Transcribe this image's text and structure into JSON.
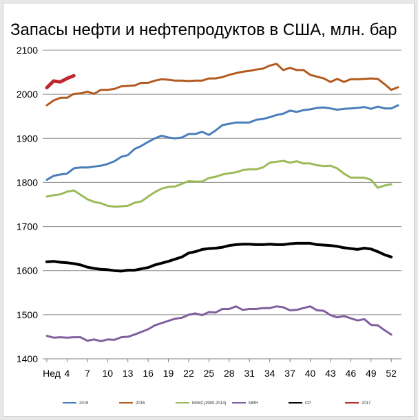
{
  "chart_data": {
    "type": "line",
    "title": "Запасы нефти и нефтепродуктов в США, млн. бар",
    "xlabel": "",
    "ylabel": "",
    "ylim": [
      1400,
      2100
    ],
    "yticks": [
      1400,
      1500,
      1600,
      1700,
      1800,
      1900,
      2000,
      2100
    ],
    "xlim": [
      1,
      53
    ],
    "xticks": [
      1,
      4,
      7,
      10,
      13,
      16,
      19,
      22,
      25,
      28,
      31,
      34,
      37,
      40,
      43,
      46,
      49,
      52
    ],
    "xtick_labels": [
      "Нед",
      "4",
      "7",
      "10",
      "13",
      "16",
      "19",
      "22",
      "25",
      "28",
      "31",
      "34",
      "37",
      "40",
      "43",
      "46",
      "49",
      "52"
    ],
    "grid": "horizontal",
    "legend_position": "bottom",
    "series": [
      {
        "name": "2015",
        "color": "#4a7ebb",
        "width": 3,
        "x": [
          1,
          2,
          3,
          4,
          5,
          6,
          7,
          8,
          9,
          10,
          11,
          12,
          13,
          14,
          15,
          16,
          17,
          18,
          19,
          20,
          21,
          22,
          23,
          24,
          25,
          26,
          27,
          28,
          29,
          30,
          31,
          32,
          33,
          34,
          35,
          36,
          37,
          38,
          39,
          40,
          41,
          42,
          43,
          44,
          45,
          46,
          47,
          48,
          49,
          50,
          51,
          52,
          53
        ],
        "values": [
          1806,
          1815,
          1818,
          1820,
          1832,
          1834,
          1834,
          1836,
          1838,
          1842,
          1848,
          1858,
          1862,
          1876,
          1883,
          1892,
          1900,
          1906,
          1902,
          1900,
          1902,
          1910,
          1910,
          1915,
          1908,
          1918,
          1930,
          1933,
          1936,
          1936,
          1936,
          1942,
          1944,
          1948,
          1953,
          1956,
          1963,
          1960,
          1964,
          1966,
          1969,
          1970,
          1968,
          1965,
          1967,
          1968,
          1969,
          1971,
          1967,
          1972,
          1968,
          1968,
          1975
        ]
      },
      {
        "name": "2016",
        "color": "#b35a1f",
        "width": 3,
        "x": [
          1,
          2,
          3,
          4,
          5,
          6,
          7,
          8,
          9,
          10,
          11,
          12,
          13,
          14,
          15,
          16,
          17,
          18,
          19,
          20,
          21,
          22,
          23,
          24,
          25,
          26,
          27,
          28,
          29,
          30,
          31,
          32,
          33,
          34,
          35,
          36,
          37,
          38,
          39,
          40,
          41,
          42,
          43,
          44,
          45,
          46,
          47,
          48,
          49,
          50,
          51,
          52,
          53
        ],
        "values": [
          1975,
          1986,
          1992,
          1992,
          2001,
          2002,
          2006,
          2001,
          2010,
          2010,
          2012,
          2018,
          2019,
          2020,
          2026,
          2026,
          2031,
          2034,
          2033,
          2031,
          2031,
          2030,
          2031,
          2031,
          2036,
          2036,
          2039,
          2044,
          2048,
          2051,
          2053,
          2056,
          2058,
          2065,
          2069,
          2055,
          2060,
          2055,
          2055,
          2044,
          2040,
          2036,
          2028,
          2035,
          2028,
          2034,
          2034,
          2035,
          2036,
          2035,
          2023,
          2010,
          2016
        ]
      },
      {
        "name": "МАКС(1990-2014)",
        "color": "#9bbb59",
        "width": 3,
        "x": [
          1,
          2,
          3,
          4,
          5,
          6,
          7,
          8,
          9,
          10,
          11,
          12,
          13,
          14,
          15,
          16,
          17,
          18,
          19,
          20,
          21,
          22,
          23,
          24,
          25,
          26,
          27,
          28,
          29,
          30,
          31,
          32,
          33,
          34,
          35,
          36,
          37,
          38,
          39,
          40,
          41,
          42,
          43,
          44,
          45,
          46,
          47,
          48,
          49,
          50,
          51,
          52
        ],
        "values": [
          1768,
          1771,
          1773,
          1779,
          1782,
          1772,
          1762,
          1756,
          1753,
          1747,
          1745,
          1746,
          1747,
          1754,
          1757,
          1768,
          1778,
          1786,
          1790,
          1791,
          1797,
          1803,
          1802,
          1802,
          1810,
          1813,
          1818,
          1821,
          1823,
          1828,
          1830,
          1830,
          1834,
          1845,
          1847,
          1849,
          1845,
          1848,
          1843,
          1843,
          1839,
          1837,
          1838,
          1832,
          1820,
          1811,
          1811,
          1811,
          1806,
          1788,
          1793,
          1796
        ]
      },
      {
        "name": "МИН",
        "color": "#7f5f9f",
        "width": 3,
        "x": [
          1,
          2,
          3,
          4,
          5,
          6,
          7,
          8,
          9,
          10,
          11,
          12,
          13,
          14,
          15,
          16,
          17,
          18,
          19,
          20,
          21,
          22,
          23,
          24,
          25,
          26,
          27,
          28,
          29,
          30,
          31,
          32,
          33,
          34,
          35,
          36,
          37,
          38,
          39,
          40,
          41,
          42,
          43,
          44,
          45,
          46,
          47,
          48,
          49,
          50,
          51,
          52
        ],
        "values": [
          1452,
          1448,
          1449,
          1448,
          1449,
          1449,
          1441,
          1444,
          1440,
          1444,
          1443,
          1449,
          1450,
          1455,
          1461,
          1467,
          1476,
          1481,
          1486,
          1491,
          1493,
          1500,
          1503,
          1499,
          1506,
          1505,
          1513,
          1513,
          1519,
          1511,
          1513,
          1513,
          1515,
          1515,
          1519,
          1517,
          1510,
          1511,
          1515,
          1519,
          1510,
          1509,
          1499,
          1494,
          1497,
          1492,
          1487,
          1490,
          1477,
          1476,
          1465,
          1455
        ]
      },
      {
        "name": "СР",
        "color": "#000000",
        "width": 4,
        "x": [
          1,
          2,
          3,
          4,
          5,
          6,
          7,
          8,
          9,
          10,
          11,
          12,
          13,
          14,
          15,
          16,
          17,
          18,
          19,
          20,
          21,
          22,
          23,
          24,
          25,
          26,
          27,
          28,
          29,
          30,
          31,
          32,
          33,
          34,
          35,
          36,
          37,
          38,
          39,
          40,
          41,
          42,
          43,
          44,
          45,
          46,
          47,
          48,
          49,
          50,
          51,
          52
        ],
        "values": [
          1620,
          1621,
          1619,
          1618,
          1616,
          1613,
          1608,
          1605,
          1603,
          1602,
          1600,
          1599,
          1601,
          1601,
          1604,
          1607,
          1613,
          1617,
          1621,
          1626,
          1631,
          1640,
          1643,
          1648,
          1650,
          1651,
          1653,
          1657,
          1659,
          1660,
          1660,
          1659,
          1659,
          1660,
          1659,
          1659,
          1661,
          1662,
          1662,
          1662,
          1659,
          1658,
          1657,
          1655,
          1652,
          1650,
          1648,
          1651,
          1649,
          1643,
          1636,
          1631
        ]
      },
      {
        "name": "2017",
        "color": "#c0272d",
        "width": 5,
        "x": [
          1,
          2,
          3,
          4,
          5
        ],
        "values": [
          2015,
          2030,
          2028,
          2036,
          2042
        ]
      }
    ]
  }
}
